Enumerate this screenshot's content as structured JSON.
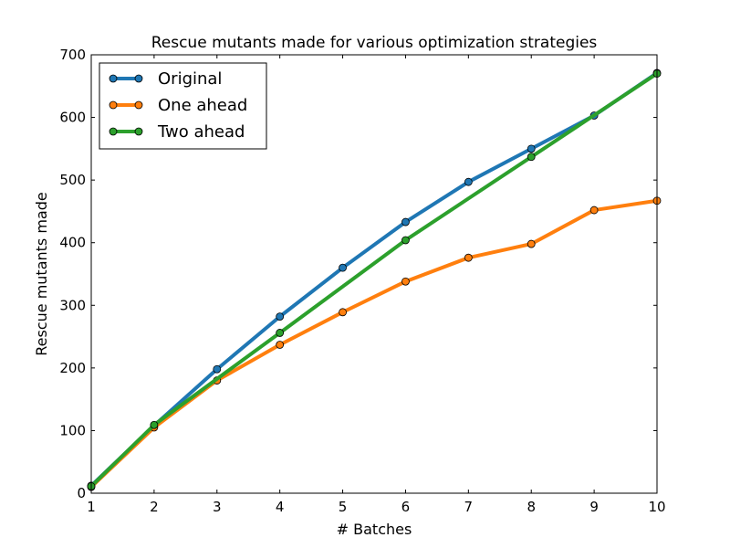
{
  "chart_data": {
    "type": "line",
    "title": "Rescue mutants made for various optimization strategies",
    "xlabel": "# Batches",
    "ylabel": "Rescue mutants made",
    "xlim": [
      1,
      10
    ],
    "ylim": [
      0,
      700
    ],
    "xticks": [
      1,
      2,
      3,
      4,
      5,
      6,
      7,
      8,
      9,
      10
    ],
    "yticks": [
      0,
      100,
      200,
      300,
      400,
      500,
      600,
      700
    ],
    "grid": false,
    "legend": {
      "placement": "top-left",
      "entries": [
        "Original",
        "One ahead",
        "Two ahead"
      ]
    },
    "series": [
      {
        "name": "Original",
        "color": "#1f77b4",
        "x": [
          1,
          2,
          3,
          4,
          5,
          6,
          7,
          8,
          9,
          10
        ],
        "y": [
          12,
          108,
          198,
          282,
          360,
          433,
          497,
          550,
          603,
          671
        ]
      },
      {
        "name": "One ahead",
        "color": "#ff7f0e",
        "x": [
          1,
          2,
          3,
          4,
          5,
          6,
          7,
          8,
          9,
          10
        ],
        "y": [
          10,
          105,
          180,
          237,
          289,
          338,
          376,
          398,
          452,
          467
        ]
      },
      {
        "name": "Two ahead",
        "color": "#2ca02c",
        "x": [
          1,
          2,
          4,
          6,
          8,
          10
        ],
        "y": [
          11,
          109,
          256,
          404,
          537,
          670
        ]
      }
    ]
  }
}
